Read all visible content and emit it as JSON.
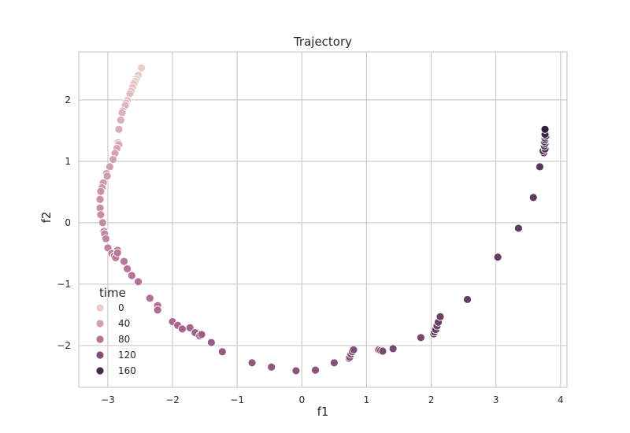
{
  "chart_data": {
    "type": "scatter",
    "title": "Trajectory",
    "xlabel": "f1",
    "ylabel": "f2",
    "xlim": [
      -3.45,
      4.1
    ],
    "ylim": [
      -2.68,
      2.78
    ],
    "xticks": [
      -3,
      -2,
      -1,
      0,
      1,
      2,
      3,
      4
    ],
    "xtick_labels": [
      "−3",
      "−2",
      "−1",
      "0",
      "1",
      "2",
      "3",
      "4"
    ],
    "yticks": [
      -2,
      -1,
      0,
      1,
      2
    ],
    "ytick_labels": [
      "−2",
      "−1",
      "0",
      "1",
      "2"
    ],
    "grid": true,
    "hue": "time",
    "hue_range": [
      0,
      175
    ],
    "colors": {
      "start": "#ebcdc7",
      "mid": "#b26a93",
      "end": "#2d1e3e"
    },
    "legend": {
      "title": "time",
      "position": "lower-left",
      "entries": [
        {
          "label": "0",
          "value": 0
        },
        {
          "label": "40",
          "value": 40
        },
        {
          "label": "80",
          "value": 80
        },
        {
          "label": "120",
          "value": 120
        },
        {
          "label": "160",
          "value": 160
        }
      ]
    },
    "points": [
      {
        "x": -2.48,
        "y": 2.52,
        "t": 0
      },
      {
        "x": -2.53,
        "y": 2.4,
        "t": 2
      },
      {
        "x": -2.56,
        "y": 2.34,
        "t": 4
      },
      {
        "x": -2.58,
        "y": 2.3,
        "t": 6
      },
      {
        "x": -2.6,
        "y": 2.26,
        "t": 8
      },
      {
        "x": -2.62,
        "y": 2.2,
        "t": 10
      },
      {
        "x": -2.64,
        "y": 2.14,
        "t": 12
      },
      {
        "x": -2.66,
        "y": 2.1,
        "t": 14
      },
      {
        "x": -2.7,
        "y": 1.99,
        "t": 16
      },
      {
        "x": -2.72,
        "y": 1.95,
        "t": 18
      },
      {
        "x": -2.73,
        "y": 1.91,
        "t": 20
      },
      {
        "x": -2.77,
        "y": 1.82,
        "t": 22
      },
      {
        "x": -2.78,
        "y": 1.79,
        "t": 24
      },
      {
        "x": -2.8,
        "y": 1.67,
        "t": 26
      },
      {
        "x": -2.83,
        "y": 1.52,
        "t": 28
      },
      {
        "x": -2.84,
        "y": 1.3,
        "t": 30
      },
      {
        "x": -2.83,
        "y": 1.27,
        "t": 32
      },
      {
        "x": -2.86,
        "y": 1.21,
        "t": 34
      },
      {
        "x": -2.89,
        "y": 1.13,
        "t": 36
      },
      {
        "x": -2.92,
        "y": 1.03,
        "t": 38
      },
      {
        "x": -2.97,
        "y": 0.91,
        "t": 40
      },
      {
        "x": -3.02,
        "y": 0.8,
        "t": 42
      },
      {
        "x": -3.01,
        "y": 0.76,
        "t": 44
      },
      {
        "x": -3.07,
        "y": 0.65,
        "t": 46
      },
      {
        "x": -3.09,
        "y": 0.57,
        "t": 48
      },
      {
        "x": -3.11,
        "y": 0.51,
        "t": 50
      },
      {
        "x": -3.12,
        "y": 0.38,
        "t": 52
      },
      {
        "x": -3.12,
        "y": 0.24,
        "t": 54
      },
      {
        "x": -3.11,
        "y": 0.13,
        "t": 56
      },
      {
        "x": -3.08,
        "y": 0.0,
        "t": 58
      },
      {
        "x": -3.06,
        "y": -0.14,
        "t": 60
      },
      {
        "x": -3.05,
        "y": -0.18,
        "t": 62
      },
      {
        "x": -3.03,
        "y": -0.26,
        "t": 64
      },
      {
        "x": -3.0,
        "y": -0.41,
        "t": 66
      },
      {
        "x": -2.94,
        "y": -0.5,
        "t": 68
      },
      {
        "x": -2.9,
        "y": -0.54,
        "t": 70
      },
      {
        "x": -2.88,
        "y": -0.57,
        "t": 72
      },
      {
        "x": -2.85,
        "y": -0.45,
        "t": 74
      },
      {
        "x": -2.85,
        "y": -0.49,
        "t": 75
      },
      {
        "x": -2.75,
        "y": -0.63,
        "t": 76
      },
      {
        "x": -2.7,
        "y": -0.75,
        "t": 78
      },
      {
        "x": -2.63,
        "y": -0.86,
        "t": 80
      },
      {
        "x": -2.53,
        "y": -0.96,
        "t": 82
      },
      {
        "x": -2.35,
        "y": -1.23,
        "t": 84
      },
      {
        "x": -2.23,
        "y": -1.35,
        "t": 86
      },
      {
        "x": -2.23,
        "y": -1.42,
        "t": 88
      },
      {
        "x": -2.0,
        "y": -1.61,
        "t": 90
      },
      {
        "x": -1.92,
        "y": -1.67,
        "t": 92
      },
      {
        "x": -1.85,
        "y": -1.73,
        "t": 94
      },
      {
        "x": -1.73,
        "y": -1.71,
        "t": 96
      },
      {
        "x": -1.65,
        "y": -1.79,
        "t": 98
      },
      {
        "x": -1.58,
        "y": -1.84,
        "t": 100
      },
      {
        "x": -1.55,
        "y": -1.82,
        "t": 102
      },
      {
        "x": -1.4,
        "y": -1.95,
        "t": 104
      },
      {
        "x": -1.23,
        "y": -2.1,
        "t": 106
      },
      {
        "x": -0.77,
        "y": -2.28,
        "t": 108
      },
      {
        "x": -0.47,
        "y": -2.35,
        "t": 110
      },
      {
        "x": -0.09,
        "y": -2.41,
        "t": 112
      },
      {
        "x": 0.21,
        "y": -2.4,
        "t": 114
      },
      {
        "x": 0.5,
        "y": -2.28,
        "t": 116
      },
      {
        "x": 0.73,
        "y": -2.21,
        "t": 117
      },
      {
        "x": 0.74,
        "y": -2.19,
        "t": 118
      },
      {
        "x": 0.76,
        "y": -2.14,
        "t": 119
      },
      {
        "x": 0.78,
        "y": -2.1,
        "t": 120
      },
      {
        "x": 0.8,
        "y": -2.07,
        "t": 121
      },
      {
        "x": 1.19,
        "y": -2.07,
        "t": 122
      },
      {
        "x": 1.22,
        "y": -2.08,
        "t": 123
      },
      {
        "x": 1.25,
        "y": -2.09,
        "t": 124
      },
      {
        "x": 1.41,
        "y": -2.05,
        "t": 126
      },
      {
        "x": 1.84,
        "y": -1.87,
        "t": 128
      },
      {
        "x": 2.04,
        "y": -1.81,
        "t": 130
      },
      {
        "x": 2.05,
        "y": -1.78,
        "t": 131
      },
      {
        "x": 2.07,
        "y": -1.74,
        "t": 132
      },
      {
        "x": 2.09,
        "y": -1.68,
        "t": 133
      },
      {
        "x": 2.11,
        "y": -1.62,
        "t": 134
      },
      {
        "x": 2.14,
        "y": -1.53,
        "t": 135
      },
      {
        "x": 2.56,
        "y": -1.25,
        "t": 137
      },
      {
        "x": 3.03,
        "y": -0.56,
        "t": 139
      },
      {
        "x": 3.35,
        "y": -0.09,
        "t": 141
      },
      {
        "x": 3.58,
        "y": 0.41,
        "t": 143
      },
      {
        "x": 3.68,
        "y": 0.91,
        "t": 145
      },
      {
        "x": 3.74,
        "y": 1.14,
        "t": 147
      },
      {
        "x": 3.73,
        "y": 1.17,
        "t": 149
      },
      {
        "x": 3.76,
        "y": 1.2,
        "t": 151
      },
      {
        "x": 3.75,
        "y": 1.25,
        "t": 153
      },
      {
        "x": 3.76,
        "y": 1.29,
        "t": 155
      },
      {
        "x": 3.75,
        "y": 1.32,
        "t": 157
      },
      {
        "x": 3.76,
        "y": 1.35,
        "t": 159
      },
      {
        "x": 3.76,
        "y": 1.38,
        "t": 161
      },
      {
        "x": 3.77,
        "y": 1.41,
        "t": 163
      },
      {
        "x": 3.76,
        "y": 1.44,
        "t": 165
      },
      {
        "x": 3.76,
        "y": 1.52,
        "t": 175
      }
    ]
  }
}
